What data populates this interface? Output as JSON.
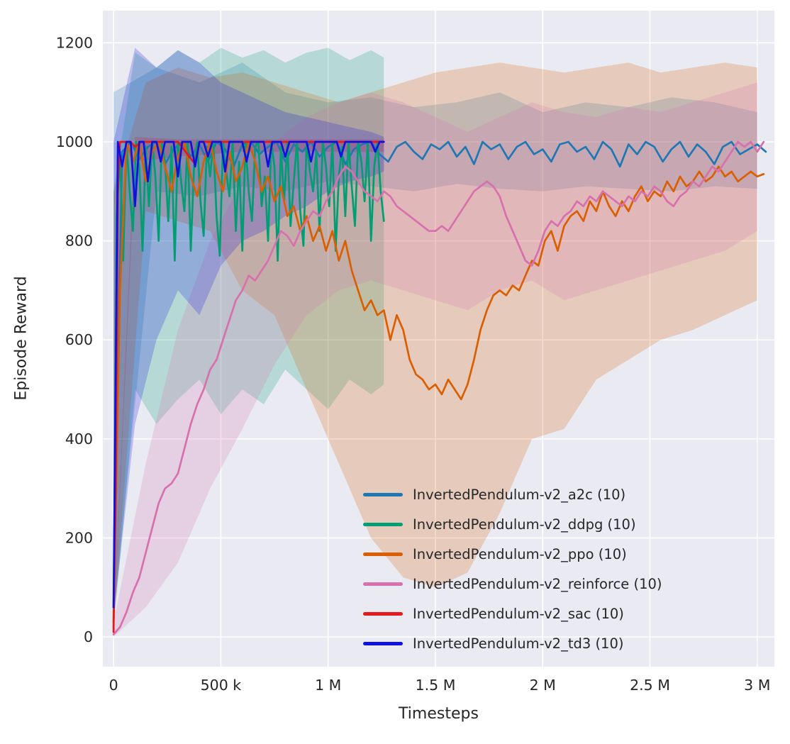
{
  "figure": {
    "background": "#ffffff",
    "axes_background": "#eaeaf2",
    "grid_color": "#ffffff",
    "text_color": "#262626"
  },
  "chart_data": {
    "type": "line",
    "title": "",
    "xlabel": "Timesteps",
    "ylabel": "Episode Reward",
    "grid": true,
    "legend_position": "lower right",
    "xlim": [
      -50000,
      3080000
    ],
    "ylim": [
      -60,
      1265
    ],
    "x_ticks": [
      {
        "value": 0,
        "label": "0"
      },
      {
        "value": 500000,
        "label": "500 k"
      },
      {
        "value": 1000000,
        "label": "1 M"
      },
      {
        "value": 1500000,
        "label": "1.5 M"
      },
      {
        "value": 2000000,
        "label": "2 M"
      },
      {
        "value": 2500000,
        "label": "2.5 M"
      },
      {
        "value": 3000000,
        "label": "3 M"
      }
    ],
    "y_ticks": [
      {
        "value": 0,
        "label": "0"
      },
      {
        "value": 200,
        "label": "200"
      },
      {
        "value": 400,
        "label": "400"
      },
      {
        "value": 600,
        "label": "600"
      },
      {
        "value": 800,
        "label": "800"
      },
      {
        "value": 1000,
        "label": "1000"
      },
      {
        "value": 1200,
        "label": "1200"
      }
    ],
    "series": [
      {
        "name": "InvertedPendulum-v2_a2c (10)",
        "color": "#1f77b4",
        "x_start": 0,
        "x_step": 40000,
        "y": [
          60,
          980,
          1000,
          965,
          990,
          1000,
          955,
          985,
          1000,
          970,
          995,
          960,
          1000,
          985,
          950,
          995,
          1000,
          975,
          990,
          1000,
          960,
          995,
          980,
          1000,
          970,
          990,
          1000,
          955,
          985,
          995,
          1000,
          975,
          960,
          990,
          1000,
          980,
          965,
          995,
          985,
          1000,
          970,
          990,
          955,
          1000,
          985,
          995,
          965,
          990,
          1000,
          975,
          985,
          960,
          995,
          1000,
          980,
          990,
          965,
          1000,
          985,
          950,
          995,
          975,
          1000,
          990,
          960,
          985,
          1000,
          970,
          995,
          980,
          955,
          990,
          1000,
          975,
          985,
          995,
          980
        ],
        "band": {
          "x": [
            0,
            200000,
            400000,
            600000,
            800000,
            1000000,
            1200000,
            1400000,
            1600000,
            1800000,
            2000000,
            2200000,
            2400000,
            2600000,
            2800000,
            3000000
          ],
          "lo": [
            40,
            900,
            890,
            910,
            900,
            920,
            910,
            900,
            915,
            905,
            900,
            910,
            905,
            900,
            910,
            905
          ],
          "hi": [
            1100,
            1150,
            1120,
            1160,
            1100,
            1080,
            1090,
            1070,
            1080,
            1100,
            1060,
            1080,
            1070,
            1090,
            1080,
            1060
          ]
        }
      },
      {
        "name": "InvertedPendulum-v2_ddpg (10)",
        "color": "#029e73",
        "x_start": 0,
        "x_step": 15000,
        "y": [
          20,
          850,
          980,
          760,
          1000,
          900,
          820,
          1000,
          950,
          780,
          990,
          870,
          1000,
          930,
          800,
          1000,
          960,
          840,
          990,
          760,
          1000,
          920,
          860,
          1000,
          780,
          950,
          1000,
          880,
          810,
          990,
          930,
          1000,
          850,
          770,
          1000,
          940,
          890,
          1000,
          820,
          960,
          780,
          1000,
          900,
          840,
          990,
          1000,
          870,
          930,
          800,
          1000,
          950,
          760,
          990,
          880,
          1000,
          830,
          920,
          1000,
          860,
          790,
          1000,
          940,
          900,
          980,
          820,
          1000,
          950,
          870,
          1000,
          780,
          930,
          990,
          850,
          1000,
          910,
          830,
          1000,
          960,
          880,
          1000,
          800,
          950,
          1000,
          900,
          840
        ],
        "band": {
          "x": [
            0,
            100000,
            200000,
            300000,
            400000,
            500000,
            600000,
            700000,
            800000,
            900000,
            1000000,
            1100000,
            1200000,
            1260000
          ],
          "lo": [
            10,
            500,
            430,
            480,
            520,
            450,
            500,
            470,
            540,
            500,
            460,
            520,
            490,
            510
          ],
          "hi": [
            900,
            1180,
            1150,
            1185,
            1160,
            1190,
            1170,
            1185,
            1160,
            1180,
            1190,
            1165,
            1185,
            1170
          ]
        }
      },
      {
        "name": "InvertedPendulum-v2_ppo (10)",
        "color": "#d95f02",
        "x_start": 0,
        "x_step": 30000,
        "y": [
          30,
          700,
          1000,
          960,
          1000,
          920,
          980,
          1000,
          950,
          900,
          970,
          1000,
          930,
          890,
          960,
          1000,
          940,
          900,
          980,
          920,
          950,
          1000,
          960,
          900,
          930,
          880,
          910,
          850,
          870,
          820,
          850,
          800,
          830,
          780,
          820,
          760,
          800,
          740,
          700,
          660,
          680,
          650,
          660,
          600,
          650,
          620,
          560,
          530,
          520,
          500,
          510,
          490,
          520,
          500,
          480,
          510,
          560,
          620,
          660,
          690,
          700,
          690,
          710,
          700,
          730,
          760,
          750,
          800,
          820,
          780,
          830,
          850,
          860,
          840,
          880,
          860,
          900,
          870,
          850,
          880,
          860,
          890,
          910,
          880,
          900,
          890,
          920,
          900,
          930,
          910,
          920,
          940,
          920,
          930,
          950,
          930,
          940,
          920,
          930,
          940,
          930,
          935
        ],
        "band": {
          "x": [
            0,
            150000,
            300000,
            450000,
            600000,
            750000,
            900000,
            1050000,
            1200000,
            1350000,
            1500000,
            1650000,
            1800000,
            1950000,
            2100000,
            2250000,
            2400000,
            2550000,
            2700000,
            2850000,
            3000000
          ],
          "lo": [
            20,
            860,
            840,
            820,
            700,
            650,
            500,
            350,
            200,
            120,
            100,
            130,
            250,
            400,
            420,
            520,
            560,
            600,
            620,
            650,
            680
          ],
          "hi": [
            900,
            1120,
            1150,
            1130,
            1140,
            1120,
            1100,
            1080,
            1100,
            1120,
            1140,
            1150,
            1160,
            1150,
            1140,
            1150,
            1160,
            1140,
            1150,
            1160,
            1150
          ]
        }
      },
      {
        "name": "InvertedPendulum-v2_reinforce (10)",
        "color": "#d671ad",
        "x_start": 0,
        "x_step": 30000,
        "y": [
          5,
          20,
          50,
          90,
          120,
          170,
          220,
          270,
          300,
          310,
          330,
          380,
          430,
          470,
          500,
          540,
          560,
          600,
          640,
          680,
          700,
          730,
          720,
          740,
          760,
          790,
          820,
          810,
          790,
          820,
          840,
          860,
          850,
          880,
          900,
          930,
          950,
          940,
          920,
          900,
          890,
          880,
          900,
          890,
          870,
          860,
          850,
          840,
          830,
          820,
          820,
          830,
          820,
          840,
          860,
          880,
          900,
          910,
          920,
          910,
          890,
          850,
          820,
          790,
          760,
          750,
          780,
          820,
          840,
          830,
          850,
          860,
          880,
          870,
          890,
          880,
          900,
          890,
          880,
          870,
          890,
          880,
          900,
          890,
          910,
          900,
          880,
          870,
          890,
          900,
          920,
          910,
          930,
          950,
          940,
          960,
          980,
          1000,
          990,
          1000,
          980,
          1000
        ],
        "band": {
          "x": [
            0,
            150000,
            300000,
            450000,
            600000,
            750000,
            900000,
            1050000,
            1200000,
            1350000,
            1500000,
            1650000,
            1800000,
            1950000,
            2100000,
            2250000,
            2400000,
            2550000,
            2700000,
            2850000,
            3000000
          ],
          "lo": [
            0,
            60,
            150,
            300,
            420,
            550,
            650,
            700,
            720,
            700,
            680,
            660,
            700,
            720,
            680,
            700,
            720,
            740,
            760,
            780,
            820
          ],
          "hi": [
            30,
            350,
            620,
            800,
            920,
            1000,
            1050,
            1080,
            1100,
            1080,
            1050,
            1020,
            1050,
            1080,
            1060,
            1050,
            1070,
            1060,
            1080,
            1100,
            1120
          ]
        }
      },
      {
        "name": "InvertedPendulum-v2_sac (10)",
        "color": "#e41a1c",
        "x": [
          0,
          10000,
          20000,
          30000,
          80000,
          100000,
          130000,
          200000,
          300000,
          380000,
          400000,
          500000,
          600000,
          700000,
          800000,
          900000,
          1000000,
          1100000,
          1200000,
          1260000
        ],
        "y": [
          10,
          300,
          900,
          1000,
          1000,
          990,
          1000,
          1000,
          1000,
          955,
          1000,
          1000,
          1000,
          1000,
          1000,
          1000,
          1000,
          1000,
          1000,
          1000
        ],
        "band": {
          "x": [
            0,
            100000,
            300000,
            600000,
            900000,
            1260000
          ],
          "lo": [
            5,
            960,
            970,
            980,
            980,
            980
          ],
          "hi": [
            20,
            1010,
            1005,
            1005,
            1005,
            1005
          ]
        }
      },
      {
        "name": "InvertedPendulum-v2_td3 (10)",
        "color": "#1010e0",
        "x_start": 0,
        "x_step": 20000,
        "y": [
          60,
          1000,
          950,
          1000,
          1000,
          870,
          1000,
          1000,
          920,
          1000,
          1000,
          960,
          1000,
          1000,
          1000,
          930,
          1000,
          1000,
          1000,
          950,
          1000,
          1000,
          970,
          1000,
          1000,
          1000,
          940,
          1000,
          1000,
          1000,
          1000,
          960,
          1000,
          1000,
          1000,
          1000,
          950,
          1000,
          1000,
          1000,
          970,
          1000,
          1000,
          1000,
          1000,
          1000,
          960,
          1000,
          1000,
          1000,
          1000,
          1000,
          1000,
          970,
          1000,
          1000,
          1000,
          1000,
          1000,
          1000,
          1000,
          980,
          1000,
          1000
        ],
        "band": {
          "x": [
            0,
            100000,
            200000,
            300000,
            400000,
            500000,
            600000,
            700000,
            800000,
            900000,
            1000000,
            1100000,
            1200000,
            1260000
          ],
          "lo": [
            40,
            430,
            600,
            700,
            650,
            750,
            800,
            820,
            850,
            870,
            900,
            920,
            930,
            940
          ],
          "hi": [
            1000,
            1190,
            1150,
            1185,
            1160,
            1120,
            1100,
            1080,
            1060,
            1050,
            1040,
            1030,
            1020,
            1010
          ]
        }
      }
    ]
  }
}
